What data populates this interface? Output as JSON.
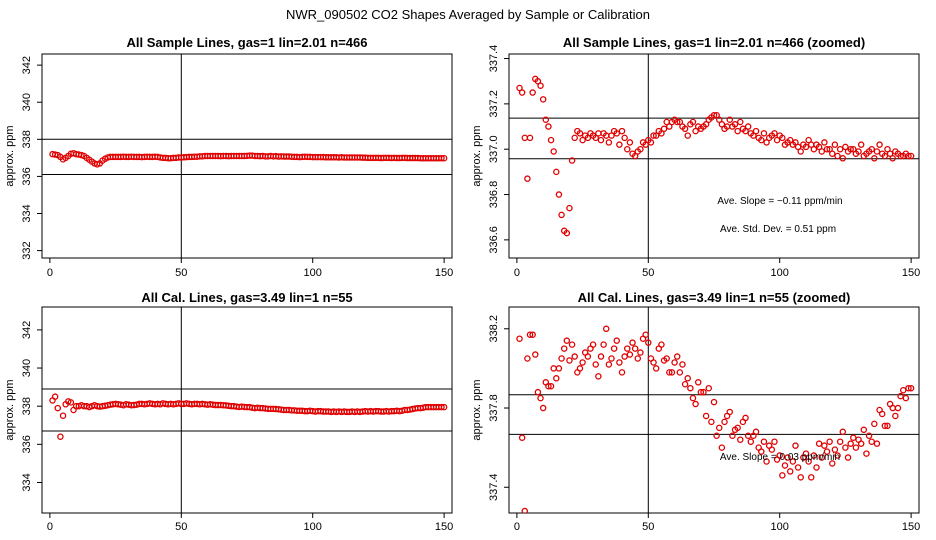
{
  "figure_title": "NWR_090502  CO2 Shapes Averaged by Sample or Calibration",
  "colors": {
    "points": "#e00000",
    "lines": "#000000",
    "background": "#ffffff"
  },
  "chart_data": [
    {
      "type": "scatter",
      "title": "All Sample Lines, gas=1 lin=2.01 n=466",
      "ylabel": "approx. ppm",
      "xlabel": "",
      "xlim": [
        -3,
        153
      ],
      "ylim": [
        331.6,
        342.6
      ],
      "xticks": [
        "0",
        "50",
        "100",
        "150"
      ],
      "xtick_values": [
        0,
        50,
        100,
        150
      ],
      "yticks": [
        "332",
        "334",
        "336",
        "338",
        "340",
        "342"
      ],
      "ytick_values": [
        332,
        334,
        336,
        338,
        340,
        342
      ],
      "hlines": [
        336.1,
        338.0
      ],
      "vline": 50,
      "annotations": [],
      "series": {
        "name": "sample",
        "x_start": 1,
        "x_step": 1,
        "values": [
          337.2,
          337.18,
          337.15,
          337.05,
          336.92,
          337.0,
          337.1,
          337.22,
          337.25,
          337.2,
          337.18,
          337.15,
          337.1,
          337.0,
          336.9,
          336.8,
          336.7,
          336.65,
          336.7,
          336.85,
          336.95,
          337.02,
          337.05,
          337.05,
          337.05,
          337.05,
          337.05,
          337.06,
          337.05,
          337.05,
          337.06,
          337.05,
          337.05,
          337.05,
          337.04,
          337.05,
          337.06,
          337.05,
          337.05,
          337.06,
          337.05,
          337.02,
          337.0,
          337.0,
          336.98,
          336.98,
          337.0,
          337.0,
          337.02,
          337.02,
          337.03,
          337.04,
          337.05,
          337.05,
          337.06,
          337.06,
          337.08,
          337.08,
          337.1,
          337.1,
          337.1,
          337.1,
          337.1,
          337.1,
          337.09,
          337.1,
          337.1,
          337.09,
          337.1,
          337.1,
          337.1,
          337.1,
          337.1,
          337.1,
          337.11,
          337.12,
          337.12,
          337.1,
          337.1,
          337.09,
          337.1,
          337.08,
          337.08,
          337.1,
          337.08,
          337.09,
          337.07,
          337.08,
          337.07,
          337.07,
          337.07,
          337.06,
          337.05,
          337.05,
          337.04,
          337.05,
          337.06,
          337.05,
          337.05,
          337.04,
          337.04,
          337.04,
          337.04,
          337.04,
          337.03,
          337.03,
          337.03,
          337.03,
          337.03,
          337.02,
          337.03,
          337.02,
          337.02,
          337.02,
          337.02,
          337.02,
          337.02,
          337.02,
          337.01,
          337.01,
          337.0,
          337.0,
          337.0,
          337.0,
          337.0,
          336.99,
          337.0,
          337.0,
          337.0,
          336.99,
          337.0,
          336.99,
          336.99,
          337.0,
          337.0,
          336.99,
          336.99,
          336.99,
          336.99,
          336.99,
          336.98,
          336.98,
          336.98,
          336.98,
          336.98,
          336.98,
          336.98,
          336.98,
          336.98,
          336.98
        ]
      }
    },
    {
      "type": "scatter",
      "title": "All Sample Lines, gas=1 lin=2.01 n=466 (zoomed)",
      "ylabel": "approx. ppm",
      "xlabel": "",
      "xlim": [
        -3,
        153
      ],
      "ylim": [
        336.52,
        337.42
      ],
      "xticks": [
        "0",
        "50",
        "100",
        "150"
      ],
      "xtick_values": [
        0,
        50,
        100,
        150
      ],
      "yticks": [
        "336.6",
        "336.8",
        "337.0",
        "337.2",
        "337.4"
      ],
      "ytick_values": [
        336.6,
        336.8,
        337.0,
        337.2,
        337.4
      ],
      "hlines": [
        336.958,
        337.137
      ],
      "vline": 50,
      "annotations": [
        "Ave. Slope =  −0.11  ppm/min",
        "Ave. Std. Dev. =  0.51  ppm"
      ],
      "series": {
        "name": "sample-zoomed",
        "x_start": 1,
        "x_step": 1,
        "values": [
          337.27,
          337.25,
          337.05,
          336.87,
          337.05,
          337.25,
          337.31,
          337.3,
          337.28,
          337.22,
          337.13,
          337.1,
          337.04,
          336.99,
          336.9,
          336.8,
          336.71,
          336.64,
          336.63,
          336.74,
          336.95,
          337.05,
          337.08,
          337.07,
          337.04,
          337.06,
          337.05,
          337.07,
          337.06,
          337.05,
          337.07,
          337.04,
          337.07,
          337.06,
          337.03,
          337.06,
          337.08,
          337.07,
          337.02,
          337.08,
          337.05,
          337.0,
          337.03,
          336.98,
          336.97,
          336.99,
          337.0,
          337.03,
          337.02,
          337.04,
          337.03,
          337.06,
          337.06,
          337.08,
          337.07,
          337.09,
          337.12,
          337.1,
          337.12,
          337.13,
          337.12,
          337.12,
          337.1,
          337.09,
          337.06,
          337.11,
          337.12,
          337.08,
          337.1,
          337.09,
          337.1,
          337.11,
          337.13,
          337.14,
          337.15,
          337.15,
          337.13,
          337.11,
          337.09,
          337.1,
          337.13,
          337.1,
          337.11,
          337.08,
          337.12,
          337.09,
          337.08,
          337.1,
          337.07,
          337.06,
          337.08,
          337.05,
          337.04,
          337.07,
          337.03,
          337.05,
          337.06,
          337.07,
          337.04,
          337.06,
          337.05,
          337.02,
          337.03,
          337.04,
          337.02,
          337.03,
          337.01,
          336.99,
          337.02,
          337.01,
          337.04,
          337.02,
          337.0,
          337.02,
          337.01,
          336.99,
          337.03,
          337.0,
          337.0,
          336.98,
          337.02,
          336.97,
          337.0,
          336.96,
          337.01,
          336.99,
          337.0,
          337.0,
          336.98,
          336.99,
          337.02,
          336.97,
          336.98,
          336.99,
          337.0,
          336.96,
          336.99,
          337.02,
          336.98,
          336.97,
          337.0,
          336.98,
          336.96,
          336.99,
          336.98,
          336.97,
          336.97,
          336.98,
          336.97,
          336.97
        ]
      }
    },
    {
      "type": "scatter",
      "title": "All Cal. Lines, gas=3.49 lin=1 n=55",
      "ylabel": "approx. ppm",
      "xlabel": "",
      "xlim": [
        -3,
        153
      ],
      "ylim": [
        332.4,
        343.2
      ],
      "xticks": [
        "0",
        "50",
        "100",
        "150"
      ],
      "xtick_values": [
        0,
        50,
        100,
        150
      ],
      "yticks": [
        "334",
        "336",
        "338",
        "340",
        "342"
      ],
      "ytick_values": [
        334,
        336,
        338,
        340,
        342
      ],
      "hlines": [
        336.7,
        338.9
      ],
      "vline": 50,
      "annotations": [],
      "series": {
        "name": "cal",
        "x_start": 1,
        "x_step": 1,
        "values": [
          338.3,
          338.5,
          337.9,
          336.4,
          337.5,
          338.1,
          338.25,
          338.2,
          337.8,
          338.0,
          338.0,
          338.05,
          338.0,
          338.0,
          337.95,
          338.0,
          338.05,
          338.0,
          337.98,
          338.0,
          338.02,
          338.05,
          338.08,
          338.1,
          338.12,
          338.1,
          338.08,
          338.05,
          338.1,
          338.08,
          338.05,
          338.06,
          338.08,
          338.12,
          338.12,
          338.1,
          338.12,
          338.15,
          338.12,
          338.1,
          338.12,
          338.1,
          338.15,
          338.12,
          338.1,
          338.12,
          338.1,
          338.12,
          338.15,
          338.12,
          338.12,
          338.15,
          338.12,
          338.1,
          338.12,
          338.12,
          338.1,
          338.12,
          338.1,
          338.08,
          338.1,
          338.08,
          338.06,
          338.06,
          338.06,
          338.05,
          338.04,
          338.02,
          338.0,
          338.0,
          337.98,
          337.96,
          337.98,
          337.96,
          337.95,
          337.95,
          337.92,
          337.9,
          337.92,
          337.9,
          337.9,
          337.88,
          337.86,
          337.86,
          337.86,
          337.85,
          337.84,
          337.82,
          337.8,
          337.8,
          337.8,
          337.78,
          337.78,
          337.76,
          337.76,
          337.76,
          337.74,
          337.74,
          337.76,
          337.74,
          337.72,
          337.74,
          337.74,
          337.72,
          337.72,
          337.72,
          337.7,
          337.72,
          337.7,
          337.72,
          337.7,
          337.72,
          337.7,
          337.7,
          337.72,
          337.7,
          337.72,
          337.7,
          337.72,
          337.74,
          337.72,
          337.74,
          337.72,
          337.74,
          337.74,
          337.72,
          337.72,
          337.74,
          337.72,
          337.74,
          337.74,
          337.76,
          337.74,
          337.76,
          337.8,
          337.8,
          337.82,
          337.85,
          337.88,
          337.9,
          337.9,
          337.92,
          337.95,
          337.95,
          337.95,
          337.95,
          337.95,
          337.95,
          337.95,
          337.95
        ]
      }
    },
    {
      "type": "scatter",
      "title": "All Cal. Lines, gas=3.49 lin=1 n=55 (zoomed)",
      "ylabel": "approx. ppm",
      "xlabel": "",
      "xlim": [
        -3,
        153
      ],
      "ylim": [
        337.27,
        338.31
      ],
      "xticks": [
        "0",
        "50",
        "100",
        "150"
      ],
      "xtick_values": [
        0,
        50,
        100,
        150
      ],
      "yticks": [
        "337.4",
        "337.8",
        "338.2"
      ],
      "ytick_values": [
        337.4,
        337.8,
        338.2
      ],
      "hlines": [
        337.667,
        337.867
      ],
      "vline": 50,
      "annotations": [
        "Ave. Slope =  0.03  ppm/min"
      ],
      "series": {
        "name": "cal-zoomed",
        "x_start": 1,
        "x_step": 1,
        "values": [
          338.15,
          337.65,
          337.28,
          338.05,
          338.17,
          338.17,
          338.07,
          337.88,
          337.85,
          337.8,
          337.93,
          337.91,
          337.91,
          338.0,
          337.95,
          338.0,
          338.05,
          338.1,
          338.14,
          338.04,
          338.12,
          338.06,
          337.98,
          338.0,
          338.03,
          338.08,
          338.06,
          338.1,
          338.12,
          338.02,
          337.96,
          338.06,
          338.12,
          338.2,
          338.02,
          338.05,
          338.1,
          338.14,
          338.03,
          337.98,
          338.06,
          338.1,
          338.07,
          338.13,
          338.1,
          338.05,
          338.08,
          338.15,
          338.17,
          338.13,
          338.05,
          338.03,
          338.0,
          338.1,
          338.12,
          338.04,
          338.05,
          337.98,
          337.98,
          338.03,
          338.06,
          337.98,
          338.02,
          337.92,
          337.95,
          337.9,
          337.85,
          337.82,
          337.93,
          337.88,
          337.88,
          337.76,
          337.9,
          337.73,
          337.83,
          337.66,
          337.7,
          337.6,
          337.73,
          337.76,
          337.78,
          337.66,
          337.69,
          337.7,
          337.64,
          337.73,
          337.75,
          337.66,
          337.63,
          337.66,
          337.68,
          337.6,
          337.58,
          337.63,
          337.53,
          337.61,
          337.59,
          337.63,
          337.54,
          337.56,
          337.46,
          337.51,
          337.55,
          337.48,
          337.53,
          337.61,
          337.5,
          337.45,
          337.55,
          337.57,
          337.53,
          337.45,
          337.56,
          337.5,
          337.62,
          337.55,
          337.61,
          337.58,
          337.63,
          337.52,
          337.59,
          337.56,
          337.63,
          337.68,
          337.6,
          337.55,
          337.62,
          337.65,
          337.6,
          337.64,
          337.62,
          337.69,
          337.57,
          337.66,
          337.63,
          337.72,
          337.62,
          337.79,
          337.77,
          337.71,
          337.71,
          337.82,
          337.8,
          337.76,
          337.8,
          337.86,
          337.89,
          337.85,
          337.9,
          337.9
        ]
      }
    }
  ]
}
